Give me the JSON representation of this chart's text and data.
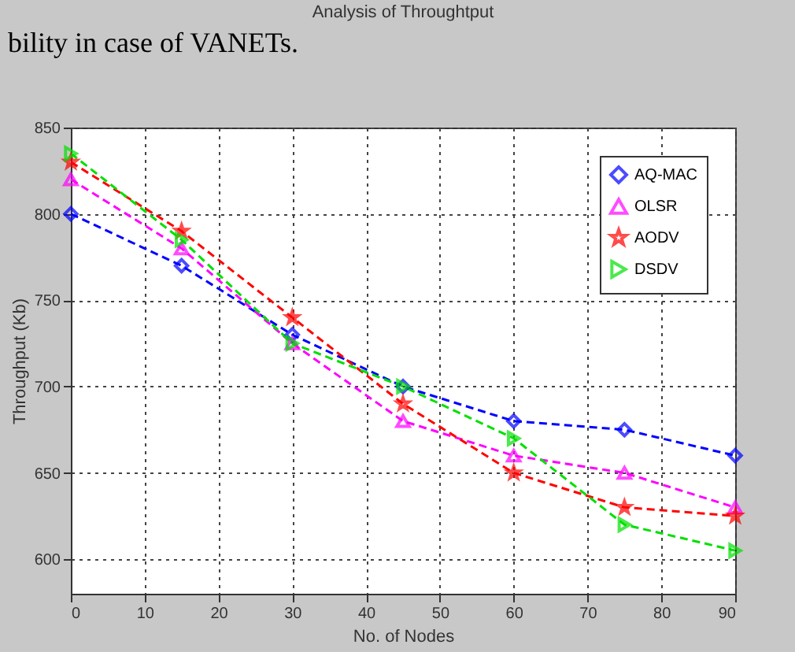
{
  "chart_data": {
    "type": "line",
    "title": "Analysis of Throughtput",
    "xlabel": "No. of Nodes",
    "ylabel": "Throughput (Kb)",
    "annotations": [
      "bility in case of VANETs."
    ],
    "x": [
      0,
      15,
      30,
      45,
      60,
      75,
      90
    ],
    "series": [
      {
        "name": "AQ-MAC",
        "color": "#0000ff",
        "marker": "diamond",
        "values": [
          800,
          770,
          730,
          700,
          680,
          675,
          660
        ]
      },
      {
        "name": "OLSR",
        "color": "#ff00ff",
        "marker": "triangle",
        "values": [
          820,
          780,
          725,
          680,
          660,
          650,
          630
        ]
      },
      {
        "name": "AODV",
        "color": "#ff0000",
        "marker": "star",
        "values": [
          830,
          790,
          740,
          690,
          650,
          630,
          625
        ]
      },
      {
        "name": "DSDV",
        "color": "#00e000",
        "marker": "triangle-right",
        "values": [
          835,
          785,
          725,
          700,
          670,
          620,
          605
        ]
      }
    ],
    "xlim": [
      0,
      90
    ],
    "xticks": [
      0,
      10,
      20,
      30,
      40,
      50,
      60,
      70,
      80,
      90
    ],
    "ylim": [
      580,
      850
    ],
    "yticks": [
      600,
      650,
      700,
      750,
      800,
      850
    ],
    "grid": true,
    "legend": "top right",
    "line_style": "dashed"
  }
}
